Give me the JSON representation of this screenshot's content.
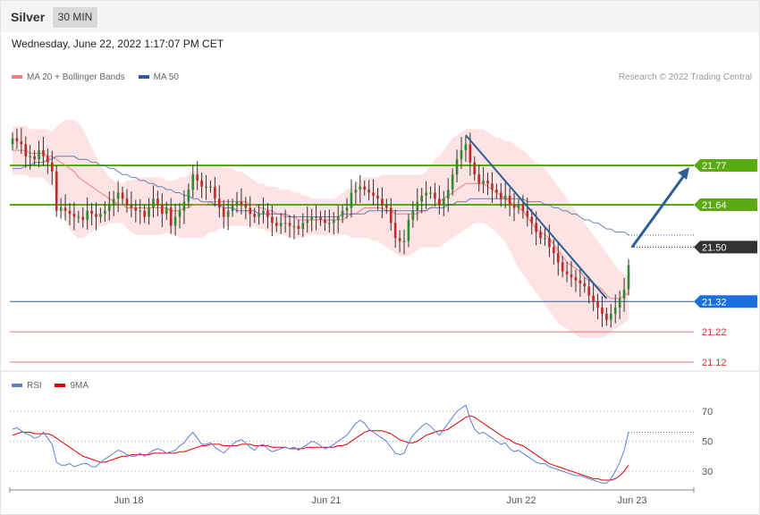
{
  "header": {
    "symbol": "Silver",
    "interval": "30 MIN"
  },
  "datetime": "Wednesday, June 22, 2022 1:17:07 PM CET",
  "legend_main": [
    {
      "label": "MA 20 + Bollinger Bands",
      "color": "#f08080"
    },
    {
      "label": "MA 50",
      "color": "#2f5b9a"
    }
  ],
  "credit": "Research © 2022 Trading Central",
  "legend_rsi": [
    {
      "label": "RSI",
      "color": "#5b7fd8"
    },
    {
      "label": "9MA",
      "color": "#e00000"
    }
  ],
  "colors": {
    "up": "#2e8b2e",
    "down": "#c62828",
    "resistance": "#5aaa14",
    "support": "#2d5e96",
    "target": "#e57373",
    "arrow": "#2d5e96"
  },
  "chart_data": [
    {
      "type": "candlestick",
      "title": "Silver 30 MIN",
      "x_ticks": [
        "Jun 18",
        "Jun 21",
        "Jun 22",
        "Jun 23"
      ],
      "ylim": [
        21.07,
        21.9
      ],
      "levels": [
        {
          "label": "21.77",
          "value": 21.77,
          "kind": "resistance"
        },
        {
          "label": "21.64",
          "value": 21.64,
          "kind": "resistance"
        },
        {
          "label": "21.50",
          "value": 21.5,
          "kind": "last"
        },
        {
          "label": "21.32",
          "value": 21.32,
          "kind": "support"
        },
        {
          "label": "21.22",
          "value": 21.22,
          "kind": "target"
        },
        {
          "label": "21.12",
          "value": 21.12,
          "kind": "target"
        }
      ],
      "close": [
        21.86,
        21.85,
        21.84,
        21.8,
        21.8,
        21.79,
        21.82,
        21.8,
        21.78,
        21.75,
        21.62,
        21.63,
        21.62,
        21.61,
        21.6,
        21.6,
        21.59,
        21.62,
        21.61,
        21.6,
        21.61,
        21.62,
        21.64,
        21.66,
        21.68,
        21.66,
        21.64,
        21.63,
        21.62,
        21.62,
        21.6,
        21.63,
        21.66,
        21.64,
        21.61,
        21.63,
        21.57,
        21.6,
        21.62,
        21.65,
        21.69,
        21.74,
        21.72,
        21.7,
        21.7,
        21.7,
        21.66,
        21.63,
        21.6,
        21.62,
        21.64,
        21.65,
        21.64,
        21.63,
        21.61,
        21.6,
        21.61,
        21.62,
        21.6,
        21.58,
        21.57,
        21.58,
        21.58,
        21.57,
        21.57,
        21.56,
        21.58,
        21.59,
        21.6,
        21.6,
        21.59,
        21.58,
        21.58,
        21.59,
        21.6,
        21.62,
        21.63,
        21.68,
        21.69,
        21.7,
        21.69,
        21.68,
        21.67,
        21.66,
        21.64,
        21.63,
        21.58,
        21.53,
        21.52,
        21.52,
        21.59,
        21.62,
        21.65,
        21.67,
        21.68,
        21.68,
        21.66,
        21.64,
        21.66,
        21.69,
        21.74,
        21.79,
        21.82,
        21.84,
        21.78,
        21.74,
        21.71,
        21.72,
        21.71,
        21.69,
        21.68,
        21.66,
        21.67,
        21.64,
        21.63,
        21.64,
        21.62,
        21.6,
        21.58,
        21.55,
        21.53,
        21.53,
        21.5,
        21.48,
        21.45,
        21.42,
        21.41,
        21.4,
        21.39,
        21.38,
        21.37,
        21.34,
        21.32,
        21.3,
        21.28,
        21.26,
        21.28,
        21.3,
        21.33,
        21.36,
        21.44
      ],
      "ma50": [
        21.76,
        21.76,
        21.76,
        21.77,
        21.77,
        21.78,
        21.78,
        21.78,
        21.79,
        21.79,
        21.8,
        21.8,
        21.8,
        21.8,
        21.8,
        21.79,
        21.79,
        21.79,
        21.78,
        21.78,
        21.77,
        21.77,
        21.76,
        21.76,
        21.75,
        21.74,
        21.74,
        21.73,
        21.73,
        21.72,
        21.72,
        21.71,
        21.71,
        21.7,
        21.7,
        21.69,
        21.69,
        21.68,
        21.68,
        21.67,
        21.67,
        21.66,
        21.66,
        21.65,
        21.65,
        21.65,
        21.64,
        21.64,
        21.63,
        21.63,
        21.63,
        21.62,
        21.62,
        21.62,
        21.62,
        21.62,
        21.61,
        21.61,
        21.61,
        21.61,
        21.61,
        21.61,
        21.61,
        21.6,
        21.6,
        21.6,
        21.6,
        21.6,
        21.6,
        21.6,
        21.6,
        21.6,
        21.6,
        21.6,
        21.6,
        21.61,
        21.61,
        21.61,
        21.61,
        21.61,
        21.61,
        21.62,
        21.62,
        21.62,
        21.62,
        21.62,
        21.62,
        21.62,
        21.62,
        21.62,
        21.62,
        21.62,
        21.62,
        21.62,
        21.62,
        21.63,
        21.63,
        21.63,
        21.63,
        21.64,
        21.64,
        21.65,
        21.65,
        21.65,
        21.66,
        21.66,
        21.66,
        21.66,
        21.66,
        21.66,
        21.66,
        21.66,
        21.66,
        21.66,
        21.66,
        21.66,
        21.66,
        21.65,
        21.65,
        21.65,
        21.65,
        21.64,
        21.64,
        21.63,
        21.63,
        21.62,
        21.62,
        21.61,
        21.61,
        21.6,
        21.59,
        21.59,
        21.58,
        21.58,
        21.57,
        21.56,
        21.56,
        21.55,
        21.55,
        21.55,
        21.54
      ],
      "ma20": [
        21.82,
        21.82,
        21.82,
        21.82,
        21.81,
        21.81,
        21.81,
        21.81,
        21.8,
        21.8,
        21.79,
        21.78,
        21.77,
        21.76,
        21.75,
        21.73,
        21.72,
        21.71,
        21.7,
        21.69,
        21.68,
        21.67,
        21.66,
        21.65,
        21.64,
        21.64,
        21.63,
        21.63,
        21.63,
        21.63,
        21.63,
        21.63,
        21.63,
        21.63,
        21.63,
        21.63,
        21.62,
        21.62,
        21.62,
        21.63,
        21.63,
        21.64,
        21.64,
        21.64,
        21.64,
        21.65,
        21.65,
        21.65,
        21.65,
        21.65,
        21.65,
        21.65,
        21.65,
        21.65,
        21.64,
        21.64,
        21.63,
        21.63,
        21.62,
        21.62,
        21.61,
        21.61,
        21.6,
        21.6,
        21.6,
        21.59,
        21.59,
        21.59,
        21.59,
        21.59,
        21.59,
        21.59,
        21.59,
        21.59,
        21.59,
        21.59,
        21.6,
        21.61,
        21.61,
        21.62,
        21.63,
        21.63,
        21.63,
        21.63,
        21.63,
        21.62,
        21.62,
        21.61,
        21.61,
        21.61,
        21.61,
        21.61,
        21.61,
        21.62,
        21.62,
        21.63,
        21.64,
        21.65,
        21.66,
        21.67,
        21.68,
        21.69,
        21.7,
        21.71,
        21.71,
        21.71,
        21.71,
        21.71,
        21.7,
        21.69,
        21.68,
        21.67,
        21.66,
        21.65,
        21.64,
        21.63,
        21.62,
        21.6,
        21.58,
        21.56,
        21.55,
        21.54,
        21.53,
        21.51,
        21.49,
        21.47,
        21.45,
        21.44,
        21.43,
        21.42,
        21.4,
        21.39,
        21.38,
        21.37,
        21.36,
        21.34,
        21.33,
        21.33,
        21.33,
        21.34,
        21.35
      ],
      "bb_upper": [
        21.9,
        21.9,
        21.9,
        21.9,
        21.89,
        21.89,
        21.89,
        21.89,
        21.89,
        21.88,
        21.9,
        21.91,
        21.92,
        21.92,
        21.92,
        21.91,
        21.89,
        21.86,
        21.83,
        21.8,
        21.77,
        21.75,
        21.73,
        21.72,
        21.71,
        21.71,
        21.72,
        21.72,
        21.73,
        21.73,
        21.73,
        21.73,
        21.73,
        21.73,
        21.73,
        21.72,
        21.72,
        21.72,
        21.73,
        21.73,
        21.74,
        21.75,
        21.76,
        21.77,
        21.77,
        21.77,
        21.77,
        21.77,
        21.76,
        21.76,
        21.76,
        21.75,
        21.75,
        21.74,
        21.73,
        21.72,
        21.71,
        21.71,
        21.7,
        21.7,
        21.7,
        21.69,
        21.69,
        21.69,
        21.68,
        21.68,
        21.67,
        21.67,
        21.66,
        21.66,
        21.66,
        21.66,
        21.66,
        21.66,
        21.67,
        21.68,
        21.69,
        21.7,
        21.71,
        21.72,
        21.73,
        21.73,
        21.73,
        21.73,
        21.74,
        21.74,
        21.74,
        21.74,
        21.74,
        21.74,
        21.74,
        21.74,
        21.74,
        21.74,
        21.75,
        21.77,
        21.79,
        21.8,
        21.82,
        21.84,
        21.86,
        21.87,
        21.88,
        21.89,
        21.89,
        21.89,
        21.89,
        21.89,
        21.88,
        21.87,
        21.86,
        21.86,
        21.85,
        21.85,
        21.84,
        21.83,
        21.82,
        21.81,
        21.79,
        21.78,
        21.77,
        21.76,
        21.74,
        21.72,
        21.7,
        21.68,
        21.66,
        21.64,
        21.62,
        21.6,
        21.58,
        21.56,
        21.54,
        21.52,
        21.5,
        21.48,
        21.46,
        21.44,
        21.42,
        21.41,
        21.4
      ],
      "bb_lower": [
        21.74,
        21.74,
        21.74,
        21.74,
        21.73,
        21.73,
        21.73,
        21.73,
        21.71,
        21.7,
        21.66,
        21.62,
        21.59,
        21.56,
        21.54,
        21.53,
        21.53,
        21.54,
        21.55,
        21.56,
        21.57,
        21.57,
        21.58,
        21.58,
        21.58,
        21.58,
        21.56,
        21.55,
        21.54,
        21.54,
        21.54,
        21.54,
        21.54,
        21.54,
        21.54,
        21.55,
        21.54,
        21.54,
        21.53,
        21.53,
        21.53,
        21.53,
        21.53,
        21.53,
        21.54,
        21.55,
        21.55,
        21.56,
        21.57,
        21.57,
        21.57,
        21.57,
        21.57,
        21.57,
        21.57,
        21.57,
        21.56,
        21.56,
        21.55,
        21.55,
        21.54,
        21.54,
        21.54,
        21.53,
        21.53,
        21.53,
        21.53,
        21.54,
        21.54,
        21.54,
        21.54,
        21.54,
        21.54,
        21.54,
        21.54,
        21.54,
        21.54,
        21.53,
        21.53,
        21.53,
        21.53,
        21.53,
        21.52,
        21.52,
        21.51,
        21.5,
        21.49,
        21.48,
        21.47,
        21.47,
        21.47,
        21.48,
        21.49,
        21.5,
        21.5,
        21.5,
        21.5,
        21.5,
        21.51,
        21.52,
        21.53,
        21.54,
        21.55,
        21.56,
        21.57,
        21.58,
        21.58,
        21.58,
        21.57,
        21.56,
        21.55,
        21.53,
        21.52,
        21.49,
        21.46,
        21.43,
        21.41,
        21.39,
        21.37,
        21.35,
        21.33,
        21.31,
        21.29,
        21.27,
        21.25,
        21.24,
        21.23,
        21.22,
        21.21,
        21.2,
        21.2,
        21.2,
        21.2,
        21.2,
        21.2,
        21.21,
        21.22,
        21.23,
        21.24,
        21.25,
        21.26
      ]
    },
    {
      "type": "line",
      "title": "RSI",
      "x_ticks": [
        "Jun 18",
        "Jun 21",
        "Jun 22",
        "Jun 23"
      ],
      "y_ticks": [
        "70",
        "50",
        "30"
      ],
      "ylim": [
        18,
        82
      ],
      "series": [
        {
          "name": "RSI",
          "values": [
            58,
            59,
            57,
            55,
            54,
            52,
            53,
            56,
            52,
            48,
            36,
            34,
            34,
            35,
            33,
            34,
            35,
            35,
            33,
            33,
            36,
            38,
            40,
            42,
            44,
            43,
            41,
            40,
            40,
            42,
            40,
            42,
            44,
            45,
            44,
            42,
            43,
            44,
            47,
            49,
            53,
            56,
            52,
            48,
            48,
            49,
            46,
            44,
            42,
            45,
            48,
            50,
            51,
            49,
            46,
            44,
            47,
            48,
            45,
            43,
            44,
            45,
            46,
            45,
            46,
            44,
            46,
            48,
            50,
            49,
            47,
            45,
            46,
            48,
            50,
            52,
            54,
            58,
            62,
            64,
            62,
            58,
            56,
            54,
            52,
            50,
            46,
            42,
            41,
            42,
            49,
            54,
            57,
            60,
            62,
            60,
            57,
            54,
            58,
            62,
            66,
            70,
            72,
            74,
            65,
            58,
            55,
            56,
            54,
            52,
            50,
            48,
            49,
            45,
            43,
            44,
            42,
            40,
            38,
            36,
            35,
            35,
            33,
            32,
            31,
            30,
            29,
            28,
            27,
            27,
            26,
            25,
            24,
            23,
            22,
            22,
            25,
            30,
            36,
            44,
            56
          ]
        },
        {
          "name": "9MA",
          "values": [
            54,
            55,
            56,
            56,
            56,
            55,
            55,
            55,
            55,
            54,
            52,
            50,
            48,
            46,
            44,
            42,
            40,
            39,
            38,
            37,
            36,
            36,
            37,
            38,
            39,
            40,
            40,
            41,
            41,
            41,
            41,
            41,
            42,
            42,
            42,
            42,
            42,
            42,
            43,
            43,
            44,
            45,
            46,
            47,
            47,
            48,
            48,
            48,
            47,
            47,
            47,
            47,
            48,
            48,
            48,
            47,
            47,
            47,
            47,
            46,
            46,
            46,
            46,
            45,
            45,
            45,
            45,
            46,
            46,
            46,
            46,
            46,
            46,
            46,
            47,
            47,
            48,
            50,
            52,
            54,
            56,
            57,
            57,
            57,
            57,
            56,
            55,
            53,
            51,
            50,
            49,
            49,
            50,
            52,
            54,
            55,
            56,
            57,
            57,
            58,
            60,
            62,
            64,
            66,
            67,
            66,
            64,
            62,
            60,
            58,
            56,
            54,
            52,
            51,
            49,
            48,
            47,
            45,
            43,
            41,
            39,
            37,
            35,
            34,
            33,
            32,
            31,
            30,
            29,
            28,
            27,
            26,
            25,
            25,
            24,
            24,
            24,
            25,
            27,
            30,
            34
          ]
        }
      ]
    }
  ]
}
